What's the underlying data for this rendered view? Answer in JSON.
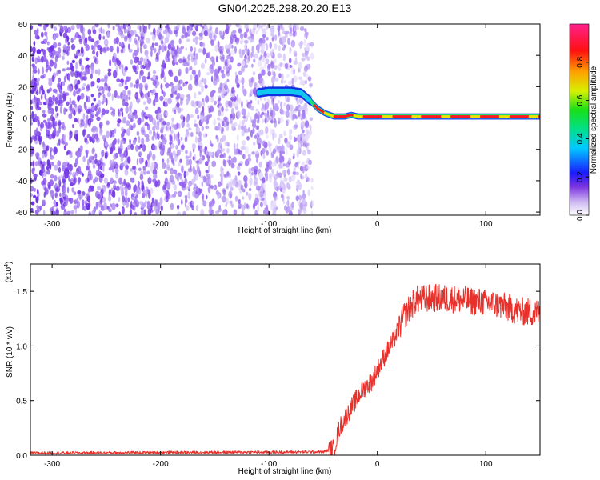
{
  "title": "GN04.2025.298.20.20.E13",
  "chart_data": [
    {
      "type": "heatmap",
      "name": "spectrogram",
      "title": "GN04.2025.298.20.20.E13",
      "xlabel": "Height of straight line (km)",
      "ylabel": "Frequency (Hz)",
      "xlim": [
        -320,
        150
      ],
      "ylim": [
        -62,
        60
      ],
      "xticks": [
        -300,
        -200,
        -100,
        0,
        100
      ],
      "xtick_labels": [
        "-300",
        "-200",
        "-100",
        "0",
        "100"
      ],
      "yticks": [
        -60,
        -40,
        -20,
        0,
        20,
        40,
        60
      ],
      "ytick_labels": [
        "-60",
        "-40",
        "-20",
        "0",
        "20",
        "40",
        "60"
      ],
      "noise_region_km": [
        -320,
        -60
      ],
      "signal_track": [
        {
          "x": -110,
          "f": 16
        },
        {
          "x": -100,
          "f": 17
        },
        {
          "x": -80,
          "f": 17
        },
        {
          "x": -70,
          "f": 16
        },
        {
          "x": -62,
          "f": 11
        },
        {
          "x": -55,
          "f": 6
        },
        {
          "x": -48,
          "f": 3
        },
        {
          "x": -40,
          "f": 1
        },
        {
          "x": -30,
          "f": 1
        },
        {
          "x": -24,
          "f": 2
        },
        {
          "x": -18,
          "f": 1
        },
        {
          "x": 0,
          "f": 1
        },
        {
          "x": 50,
          "f": 1
        },
        {
          "x": 100,
          "f": 1
        },
        {
          "x": 150,
          "f": 1
        }
      ],
      "colorbar": {
        "label": "Normalized spectral amplitude",
        "range": [
          0.0,
          1.0
        ],
        "ticks": [
          0.0,
          0.2,
          0.4,
          0.6,
          0.8
        ],
        "tick_labels": [
          "0.0",
          "0.2",
          "0.4",
          "0.6",
          "0.8"
        ]
      }
    },
    {
      "type": "line",
      "name": "snr",
      "xlabel": "Height of straight line (km)",
      "ylabel": "SNR (10 * v/v)",
      "scale_label": "(x10",
      "scale_exp": "4",
      "scale_close": ")",
      "xlim": [
        -320,
        150
      ],
      "ylim": [
        0,
        1.75
      ],
      "xticks": [
        -300,
        -200,
        -100,
        0,
        100
      ],
      "xtick_labels": [
        "-300",
        "-200",
        "-100",
        "0",
        "100"
      ],
      "yticks": [
        0.0,
        0.5,
        1.0,
        1.5
      ],
      "ytick_labels": [
        "0.0",
        "0.5",
        "1.0",
        "1.5"
      ],
      "color": "#e8312b",
      "trend": [
        {
          "x": -320,
          "y": 0.02
        },
        {
          "x": -50,
          "y": 0.03
        },
        {
          "x": -40,
          "y": 0.06
        },
        {
          "x": -35,
          "y": 0.25
        },
        {
          "x": -25,
          "y": 0.42
        },
        {
          "x": -15,
          "y": 0.58
        },
        {
          "x": -5,
          "y": 0.68
        },
        {
          "x": 5,
          "y": 0.88
        },
        {
          "x": 15,
          "y": 1.05
        },
        {
          "x": 25,
          "y": 1.28
        },
        {
          "x": 35,
          "y": 1.42
        },
        {
          "x": 50,
          "y": 1.44
        },
        {
          "x": 70,
          "y": 1.43
        },
        {
          "x": 90,
          "y": 1.41
        },
        {
          "x": 110,
          "y": 1.38
        },
        {
          "x": 130,
          "y": 1.32
        },
        {
          "x": 150,
          "y": 1.3
        }
      ]
    }
  ]
}
